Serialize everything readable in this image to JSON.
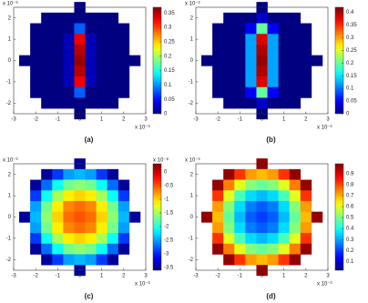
{
  "chart_data": [
    {
      "type": "heatmap",
      "caption": "(a)",
      "x_offset_label": "x 10⁻³",
      "y_offset_label": "x 10⁻³",
      "x": [
        -2.5,
        -2,
        -1.5,
        -1,
        -0.5,
        0,
        0.5,
        1,
        1.5,
        2,
        2.5
      ],
      "y": [
        2.5,
        2,
        1.5,
        1,
        0.5,
        0,
        -0.5,
        -1,
        -1.5,
        -2,
        -2.5
      ],
      "values": [
        [
          null,
          null,
          null,
          null,
          null,
          0,
          null,
          null,
          null,
          null,
          null
        ],
        [
          null,
          null,
          0,
          0,
          0,
          0,
          0,
          0,
          0,
          null,
          null
        ],
        [
          null,
          0,
          0,
          0,
          0,
          0.08,
          0,
          0,
          0,
          0,
          null
        ],
        [
          null,
          0,
          0,
          0,
          0.02,
          0.33,
          0.02,
          0,
          0,
          0,
          null
        ],
        [
          null,
          0,
          0,
          0,
          0.02,
          0.35,
          0.02,
          0,
          0,
          0,
          null
        ],
        [
          0,
          0,
          0,
          0,
          0.02,
          0.36,
          0.02,
          0,
          0,
          0,
          0
        ],
        [
          null,
          0,
          0,
          0,
          0.02,
          0.35,
          0.02,
          0,
          0,
          0,
          null
        ],
        [
          null,
          0,
          0,
          0,
          0.02,
          0.33,
          0.02,
          0,
          0,
          0,
          null
        ],
        [
          null,
          0,
          0,
          0,
          0,
          0.08,
          0,
          0,
          0,
          0,
          null
        ],
        [
          null,
          null,
          0,
          0,
          0,
          0,
          0,
          0,
          0,
          null,
          null
        ],
        [
          null,
          null,
          null,
          null,
          null,
          0,
          null,
          null,
          null,
          null,
          null
        ]
      ],
      "xlim": [
        -3,
        3
      ],
      "ylim": [
        -2.5,
        2.5
      ],
      "xticks": [
        -3,
        -2,
        -1,
        0,
        1,
        2,
        3
      ],
      "yticks": [
        -2,
        -1,
        0,
        1,
        2
      ],
      "colorbar": {
        "lim": [
          0,
          0.37
        ],
        "ticks": [
          0,
          0.05,
          0.1,
          0.15,
          0.2,
          0.25,
          0.3,
          0.35
        ]
      }
    },
    {
      "type": "heatmap",
      "caption": "(b)",
      "x_offset_label": "x 10⁻³",
      "y_offset_label": "x 10⁻³",
      "x": [
        -2.5,
        -2,
        -1.5,
        -1,
        -0.5,
        0,
        0.5,
        1,
        1.5,
        2,
        2.5
      ],
      "y": [
        2.5,
        2,
        1.5,
        1,
        0.5,
        0,
        -0.5,
        -1,
        -1.5,
        -2,
        -2.5
      ],
      "values": [
        [
          null,
          null,
          null,
          null,
          null,
          0,
          null,
          null,
          null,
          null,
          null
        ],
        [
          null,
          null,
          0,
          0,
          0,
          0.03,
          0,
          0,
          0,
          null,
          null
        ],
        [
          null,
          0,
          0,
          0,
          0.05,
          0.2,
          0.05,
          0,
          0,
          0,
          null
        ],
        [
          null,
          0,
          0,
          0,
          0.12,
          0.38,
          0.12,
          0,
          0,
          0,
          null
        ],
        [
          null,
          0,
          0,
          0,
          0.12,
          0.4,
          0.12,
          0,
          0,
          0,
          null
        ],
        [
          0,
          0,
          0,
          0,
          0.12,
          0.41,
          0.12,
          0,
          0,
          0,
          0
        ],
        [
          null,
          0,
          0,
          0,
          0.12,
          0.4,
          0.12,
          0,
          0,
          0,
          null
        ],
        [
          null,
          0,
          0,
          0,
          0.12,
          0.38,
          0.12,
          0,
          0,
          0,
          null
        ],
        [
          null,
          0,
          0,
          0,
          0.05,
          0.2,
          0.05,
          0,
          0,
          0,
          null
        ],
        [
          null,
          null,
          0,
          0,
          0,
          0.03,
          0,
          0,
          0,
          null,
          null
        ],
        [
          null,
          null,
          null,
          null,
          null,
          0,
          null,
          null,
          null,
          null,
          null
        ]
      ],
      "xlim": [
        -3,
        3
      ],
      "ylim": [
        -2.5,
        2.5
      ],
      "xticks": [
        -3,
        -2,
        -1,
        0,
        1,
        2,
        3
      ],
      "yticks": [
        -2,
        -1,
        0,
        1,
        2
      ],
      "colorbar": {
        "lim": [
          0,
          0.42
        ],
        "ticks": [
          0,
          0.05,
          0.1,
          0.15,
          0.2,
          0.25,
          0.3,
          0.35,
          0.4
        ]
      }
    },
    {
      "type": "heatmap",
      "caption": "(c)",
      "x_offset_label": "x 10⁻³",
      "y_offset_label": "x 10⁻³",
      "x": [
        -2.5,
        -2,
        -1.5,
        -1,
        -0.5,
        0,
        0.5,
        1,
        1.5,
        2,
        2.5
      ],
      "y": [
        2.5,
        2,
        1.5,
        1,
        0.5,
        0,
        -0.5,
        -1,
        -1.5,
        -2,
        -2.5
      ],
      "values": [
        [
          null,
          null,
          null,
          null,
          null,
          -3.5,
          null,
          null,
          null,
          null,
          null
        ],
        [
          null,
          null,
          -3.5,
          -2.9,
          -2.5,
          -2.4,
          -2.5,
          -2.9,
          -3.5,
          null,
          null
        ],
        [
          null,
          -3.5,
          -2.7,
          -2.1,
          -1.7,
          -1.6,
          -1.7,
          -2.1,
          -2.7,
          -3.5,
          null
        ],
        [
          null,
          -2.9,
          -2.1,
          -1.5,
          -1.1,
          -1.0,
          -1.1,
          -1.5,
          -2.1,
          -2.9,
          null
        ],
        [
          null,
          -2.5,
          -1.7,
          -1.1,
          -0.7,
          -0.6,
          -0.7,
          -1.1,
          -1.7,
          -2.5,
          null
        ],
        [
          -3.5,
          -2.4,
          -1.6,
          -1.0,
          -0.6,
          -0.5,
          -0.6,
          -1.0,
          -1.6,
          -2.4,
          -3.5
        ],
        [
          null,
          -2.5,
          -1.7,
          -1.1,
          -0.7,
          -0.6,
          -0.7,
          -1.1,
          -1.7,
          -2.5,
          null
        ],
        [
          null,
          -2.9,
          -2.1,
          -1.5,
          -1.1,
          -1.0,
          -1.1,
          -1.5,
          -2.1,
          -2.9,
          null
        ],
        [
          null,
          -3.5,
          -2.7,
          -2.1,
          -1.7,
          -1.6,
          -1.7,
          -2.1,
          -2.7,
          -3.5,
          null
        ],
        [
          null,
          null,
          -3.5,
          -2.9,
          -2.5,
          -2.4,
          -2.5,
          -2.9,
          -3.5,
          null,
          null
        ],
        [
          null,
          null,
          null,
          null,
          null,
          -3.5,
          null,
          null,
          null,
          null,
          null
        ]
      ],
      "xlim": [
        -3,
        3
      ],
      "ylim": [
        -2.5,
        2.5
      ],
      "xticks": [
        -3,
        -2,
        -1,
        0,
        1,
        2,
        3
      ],
      "yticks": [
        -2,
        -1,
        0,
        1,
        2
      ],
      "colorbar": {
        "lim": [
          -3.6,
          0.3
        ],
        "ticks": [
          -3.5,
          -3,
          -2.5,
          -2,
          -1.5,
          -1,
          -0.5,
          0
        ],
        "offset_label": "x 10⁻⁸"
      }
    },
    {
      "type": "heatmap",
      "caption": "(d)",
      "x_offset_label": "x 10⁻³",
      "y_offset_label": "x 10⁻³",
      "x": [
        -2.5,
        -2,
        -1.5,
        -1,
        -0.5,
        0,
        0.5,
        1,
        1.5,
        2,
        2.5
      ],
      "y": [
        2.5,
        2,
        1.5,
        1,
        0.5,
        0,
        -0.5,
        -1,
        -1.5,
        -2,
        -2.5
      ],
      "values": [
        [
          null,
          null,
          null,
          null,
          null,
          0.97,
          null,
          null,
          null,
          null,
          null
        ],
        [
          null,
          null,
          0.97,
          0.82,
          0.72,
          0.69,
          0.72,
          0.82,
          0.97,
          null,
          null
        ],
        [
          null,
          0.97,
          0.75,
          0.6,
          0.51,
          0.48,
          0.51,
          0.6,
          0.75,
          0.97,
          null
        ],
        [
          null,
          0.82,
          0.6,
          0.45,
          0.35,
          0.32,
          0.35,
          0.45,
          0.6,
          0.82,
          null
        ],
        [
          null,
          0.72,
          0.51,
          0.35,
          0.26,
          0.23,
          0.26,
          0.35,
          0.51,
          0.72,
          null
        ],
        [
          0.97,
          0.69,
          0.48,
          0.32,
          0.23,
          0.2,
          0.23,
          0.32,
          0.48,
          0.69,
          0.97
        ],
        [
          null,
          0.72,
          0.51,
          0.35,
          0.26,
          0.23,
          0.26,
          0.35,
          0.51,
          0.72,
          null
        ],
        [
          null,
          0.82,
          0.6,
          0.45,
          0.35,
          0.32,
          0.35,
          0.45,
          0.6,
          0.82,
          null
        ],
        [
          null,
          0.97,
          0.75,
          0.6,
          0.51,
          0.48,
          0.51,
          0.6,
          0.75,
          0.97,
          null
        ],
        [
          null,
          null,
          0.97,
          0.82,
          0.72,
          0.69,
          0.72,
          0.82,
          0.97,
          null,
          null
        ],
        [
          null,
          null,
          null,
          null,
          null,
          0.97,
          null,
          null,
          null,
          null,
          null
        ]
      ],
      "xlim": [
        -3,
        3
      ],
      "ylim": [
        -2.5,
        2.5
      ],
      "xticks": [
        -3,
        -2,
        -1,
        0,
        1,
        2,
        3
      ],
      "yticks": [
        -2,
        -1,
        0,
        1,
        2
      ],
      "colorbar": {
        "lim": [
          0.02,
          0.99
        ],
        "ticks": [
          0.1,
          0.2,
          0.3,
          0.4,
          0.5,
          0.6,
          0.7,
          0.8,
          0.9
        ]
      }
    }
  ]
}
